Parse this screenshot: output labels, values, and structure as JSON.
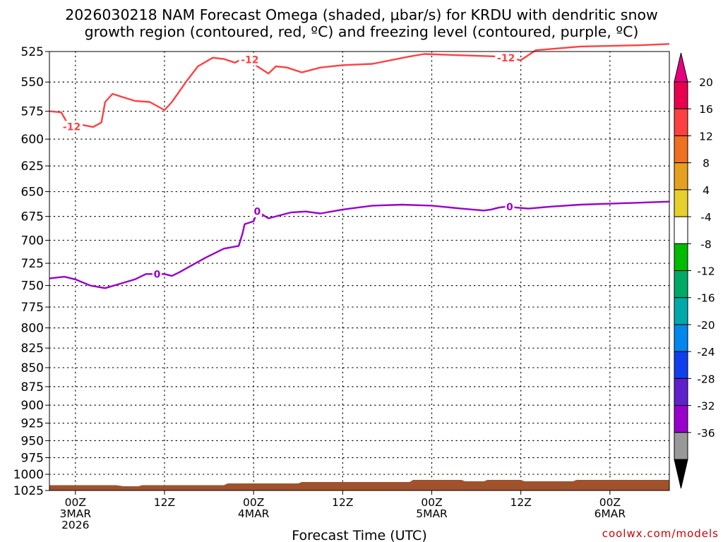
{
  "header": {
    "title_line_1": "2026030218 NAM Forecast Omega (shaded, μbar/s) for KRDU with dendritic snow",
    "title_line_2": "growth region (contoured, red, ºC) and freezing level (contoured, purple, ºC)"
  },
  "footer": {
    "credit": "coolwx.com/models"
  },
  "chart_data": {
    "type": "line",
    "xlabel": "Forecast Time (UTC)",
    "ylabel": "",
    "x_range_hours": [
      -3.5,
      80
    ],
    "ylim": [
      1025,
      525
    ],
    "y_ticks": [
      525,
      550,
      575,
      600,
      625,
      650,
      675,
      700,
      725,
      750,
      775,
      800,
      825,
      850,
      875,
      900,
      925,
      950,
      975,
      1000,
      1025
    ],
    "y_scale": "log-pressure",
    "x_ticks": [
      {
        "hour": 0,
        "lines": [
          "00Z",
          "3MAR",
          "2026"
        ]
      },
      {
        "hour": 12,
        "lines": [
          "12Z"
        ]
      },
      {
        "hour": 24,
        "lines": [
          "00Z",
          "4MAR"
        ]
      },
      {
        "hour": 36,
        "lines": [
          "12Z"
        ]
      },
      {
        "hour": 48,
        "lines": [
          "00Z",
          "5MAR"
        ]
      },
      {
        "hour": 60,
        "lines": [
          "12Z"
        ]
      },
      {
        "hour": 72,
        "lines": [
          "00Z",
          "6MAR"
        ]
      }
    ],
    "grid": true,
    "series": [
      {
        "color": "#ff4040",
        "contour_label": "-12",
        "label_at_hours": [
          -0.5,
          23.5,
          58
        ],
        "points": [
          [
            -3.5,
            575
          ],
          [
            -1.9,
            576
          ],
          [
            -0.8,
            589
          ],
          [
            0.8,
            587
          ],
          [
            2.4,
            589
          ],
          [
            3.5,
            585
          ],
          [
            4.0,
            567
          ],
          [
            5.0,
            560
          ],
          [
            6.5,
            563
          ],
          [
            8.0,
            566
          ],
          [
            10.0,
            567
          ],
          [
            12.0,
            574
          ],
          [
            13.0,
            567
          ],
          [
            15.0,
            549
          ],
          [
            16.5,
            537
          ],
          [
            18.5,
            530
          ],
          [
            20.0,
            531
          ],
          [
            21.5,
            534
          ],
          [
            23.0,
            529
          ],
          [
            24.5,
            537
          ],
          [
            26.0,
            543
          ],
          [
            27.0,
            537
          ],
          [
            28.5,
            538
          ],
          [
            30.5,
            542
          ],
          [
            33.0,
            538
          ],
          [
            36.0,
            536
          ],
          [
            40.0,
            535
          ],
          [
            45.0,
            529
          ],
          [
            47.0,
            527
          ],
          [
            52.0,
            528
          ],
          [
            57.0,
            529
          ],
          [
            60.0,
            532
          ],
          [
            62.0,
            524
          ],
          [
            68.0,
            521
          ],
          [
            76.0,
            520
          ],
          [
            80.0,
            519
          ]
        ]
      },
      {
        "color": "#9900cc",
        "contour_label": "0",
        "label_at_hours": [
          11.0,
          24.5,
          58.5
        ],
        "points": [
          [
            -3.5,
            742
          ],
          [
            -1.5,
            740
          ],
          [
            0.0,
            743
          ],
          [
            2.0,
            750
          ],
          [
            4.0,
            753
          ],
          [
            6.0,
            748
          ],
          [
            8.0,
            743
          ],
          [
            9.5,
            737
          ],
          [
            12.0,
            737
          ],
          [
            13.0,
            739
          ],
          [
            14.0,
            735
          ],
          [
            15.5,
            728
          ],
          [
            17.5,
            719
          ],
          [
            20.0,
            709
          ],
          [
            22.0,
            706
          ],
          [
            22.5,
            693
          ],
          [
            22.8,
            683
          ],
          [
            24.0,
            680
          ],
          [
            24.5,
            670
          ],
          [
            26.0,
            677
          ],
          [
            27.0,
            675
          ],
          [
            29.0,
            671
          ],
          [
            31.0,
            670
          ],
          [
            33.0,
            672
          ],
          [
            36.0,
            668
          ],
          [
            40.0,
            664
          ],
          [
            44.0,
            663
          ],
          [
            48.0,
            664
          ],
          [
            52.0,
            667
          ],
          [
            55.0,
            669
          ],
          [
            56.0,
            668
          ],
          [
            57.0,
            666
          ],
          [
            58.0,
            665
          ],
          [
            61.0,
            667
          ],
          [
            64.0,
            665
          ],
          [
            68.0,
            663
          ],
          [
            72.0,
            662
          ],
          [
            76.0,
            661
          ],
          [
            80.0,
            660
          ]
        ]
      }
    ],
    "terrain_color": "#a0522d",
    "colorbar": {
      "labels": [
        "20",
        "16",
        "12",
        "8",
        "4",
        "-4",
        "-8",
        "-12",
        "-16",
        "-20",
        "-24",
        "-28",
        "-32",
        "-36"
      ],
      "colors": [
        "#e8004f",
        "#ff4040",
        "#ee7020",
        "#e6a020",
        "#e6d02c",
        "#ffffff",
        "#00bb00",
        "#00aa66",
        "#00aaaa",
        "#0088ee",
        "#1040ee",
        "#6020cc",
        "#9900cc",
        "#999999"
      ],
      "top_triangle_color": "#e8007f",
      "bottom_triangle_color": "#000000"
    }
  }
}
